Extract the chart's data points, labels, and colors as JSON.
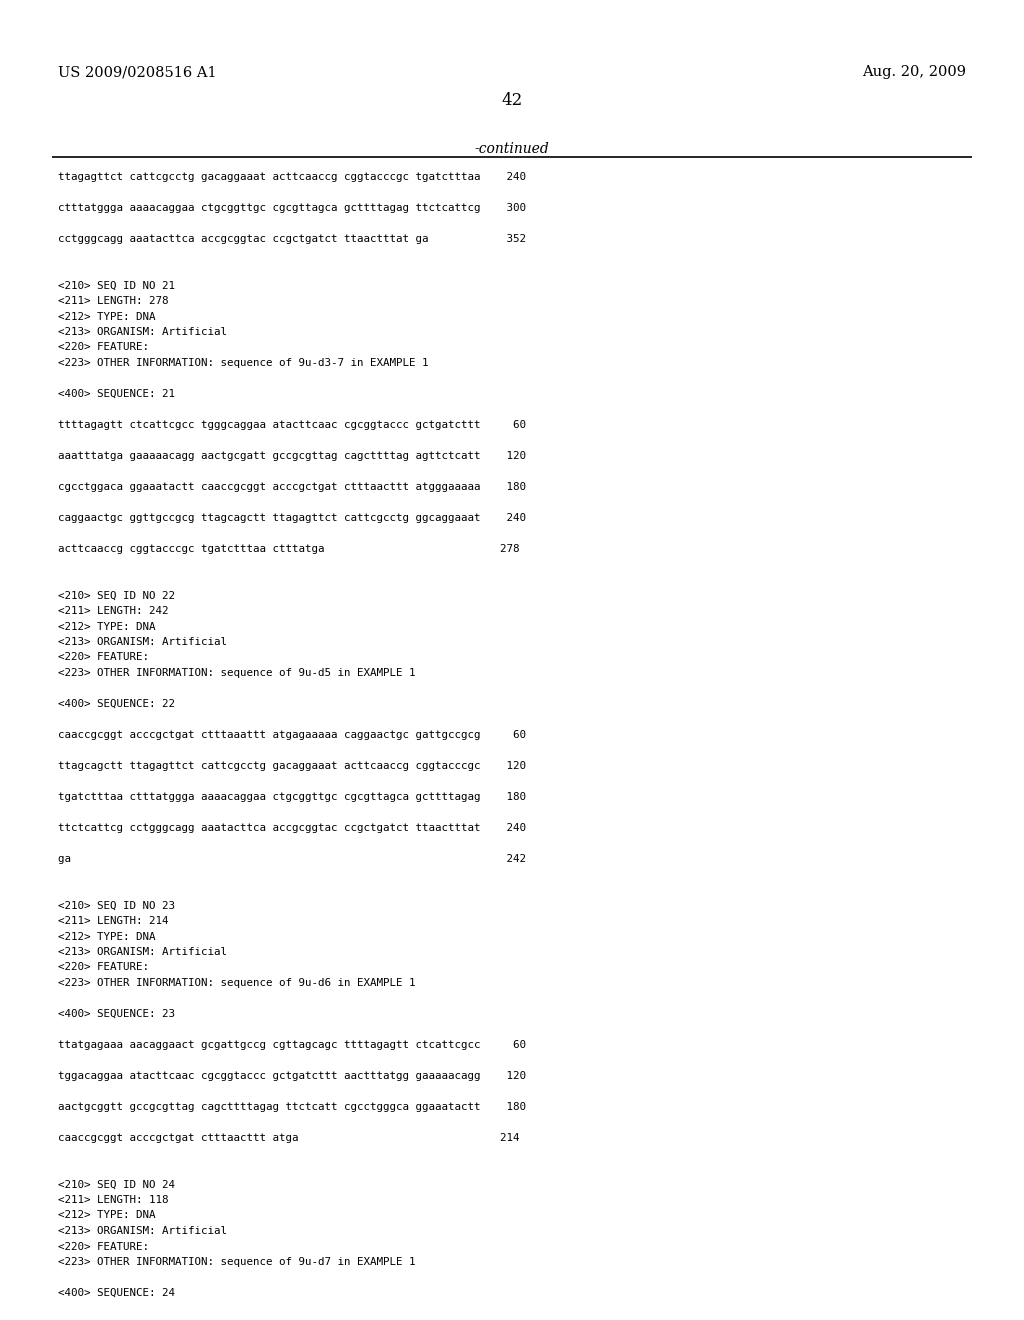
{
  "background_color": "#ffffff",
  "top_left_text": "US 2009/0208516 A1",
  "top_right_text": "Aug. 20, 2009",
  "page_number": "42",
  "continued_text": "-continued",
  "content": [
    "ttagagttct cattcgcctg gacaggaaat acttcaaccg cggtacccgc tgatctttaa    240",
    "",
    "ctttatggga aaaacaggaa ctgcggttgc cgcgttagca gcttttagag ttctcattcg    300",
    "",
    "cctgggcagg aaatacttca accgcggtac ccgctgatct ttaactttat ga            352",
    "",
    "",
    "<210> SEQ ID NO 21",
    "<211> LENGTH: 278",
    "<212> TYPE: DNA",
    "<213> ORGANISM: Artificial",
    "<220> FEATURE:",
    "<223> OTHER INFORMATION: sequence of 9u-d3-7 in EXAMPLE 1",
    "",
    "<400> SEQUENCE: 21",
    "",
    "ttttagagtt ctcattcgcc tgggcaggaa atacttcaac cgcggtaccc gctgatcttt     60",
    "",
    "aaatttatga gaaaaacagg aactgcgatt gccgcgttag cagcttttag agttctcatt    120",
    "",
    "cgcctggaca ggaaatactt caaccgcggt acccgctgat ctttaacttt atgggaaaaa    180",
    "",
    "caggaactgc ggttgccgcg ttagcagctt ttagagttct cattcgcctg ggcaggaaat    240",
    "",
    "acttcaaccg cggtacccgc tgatctttaa ctttatga                           278",
    "",
    "",
    "<210> SEQ ID NO 22",
    "<211> LENGTH: 242",
    "<212> TYPE: DNA",
    "<213> ORGANISM: Artificial",
    "<220> FEATURE:",
    "<223> OTHER INFORMATION: sequence of 9u-d5 in EXAMPLE 1",
    "",
    "<400> SEQUENCE: 22",
    "",
    "caaccgcggt acccgctgat ctttaaattt atgagaaaaa caggaactgc gattgccgcg     60",
    "",
    "ttagcagctt ttagagttct cattcgcctg gacaggaaat acttcaaccg cggtacccgc    120",
    "",
    "tgatctttaa ctttatggga aaaacaggaa ctgcggttgc cgcgttagca gcttttagag    180",
    "",
    "ttctcattcg cctgggcagg aaatacttca accgcggtac ccgctgatct ttaactttat    240",
    "",
    "ga                                                                   242",
    "",
    "",
    "<210> SEQ ID NO 23",
    "<211> LENGTH: 214",
    "<212> TYPE: DNA",
    "<213> ORGANISM: Artificial",
    "<220> FEATURE:",
    "<223> OTHER INFORMATION: sequence of 9u-d6 in EXAMPLE 1",
    "",
    "<400> SEQUENCE: 23",
    "",
    "ttatgagaaa aacaggaact gcgattgccg cgttagcagc ttttagagtt ctcattcgcc     60",
    "",
    "tggacaggaa atacttcaac cgcggtaccc gctgatcttt aactttatgg gaaaaacagg    120",
    "",
    "aactgcggtt gccgcgttag cagcttttagag ttctcatt cgcctgggca ggaaatactt    180",
    "",
    "caaccgcggt acccgctgat ctttaacttt atga                               214",
    "",
    "",
    "<210> SEQ ID NO 24",
    "<211> LENGTH: 118",
    "<212> TYPE: DNA",
    "<213> ORGANISM: Artificial",
    "<220> FEATURE:",
    "<223> OTHER INFORMATION: sequence of 9u-d7 in EXAMPLE 1",
    "",
    "<400> SEQUENCE: 24",
    "",
    "ctttaacttt atgggaaaaa caggaactgc ggttgccgcg ttagcagctt ttagagttct     60"
  ]
}
